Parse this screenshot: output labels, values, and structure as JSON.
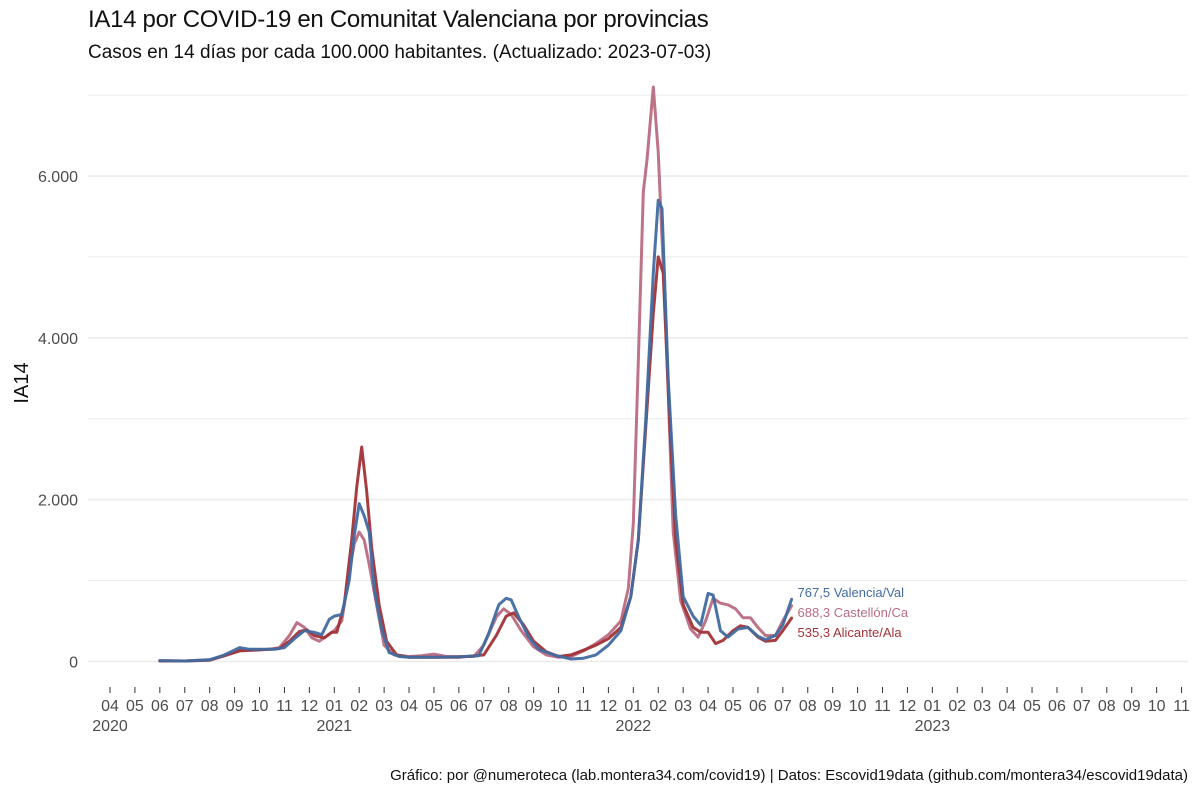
{
  "title": "IA14 por COVID-19 en Comunitat Valenciana por provincias",
  "subtitle": "Casos en 14 días por cada 100.000 habitantes.  (Actualizado: 2023-07-03)",
  "caption": "Gráfico: por @numeroteca (lab.montera34.com/covid19) | Datos: Escovid19data (github.com/montera34/escovid19data)",
  "colors": {
    "valencia": "#426ba0",
    "castellon": "#b96d82",
    "alicante": "#a23337",
    "grid": "#ebebeb",
    "axis_text": "#4d4d4d"
  },
  "chart_data": {
    "type": "line",
    "title": "IA14 por COVID-19 en Comunitat Valenciana por provincias",
    "xlabel": "",
    "ylabel": "IA14",
    "ylim": [
      -230,
      7150
    ],
    "xlim_months": [
      -1,
      42
    ],
    "x_unit": "months since 2020-04-01 (0 = 2020-04)",
    "y_ticks": [
      0,
      2000,
      4000,
      6000
    ],
    "y_tick_labels": [
      "0",
      "2.000",
      "4.000",
      "6.000"
    ],
    "grid": true,
    "x_ticks": [
      {
        "m": 0,
        "label": "04",
        "year": "2020"
      },
      {
        "m": 1,
        "label": "05"
      },
      {
        "m": 2,
        "label": "06"
      },
      {
        "m": 3,
        "label": "07"
      },
      {
        "m": 4,
        "label": "08"
      },
      {
        "m": 5,
        "label": "09"
      },
      {
        "m": 6,
        "label": "10"
      },
      {
        "m": 7,
        "label": "11"
      },
      {
        "m": 8,
        "label": "12"
      },
      {
        "m": 9,
        "label": "01",
        "year": "2021"
      },
      {
        "m": 10,
        "label": "02"
      },
      {
        "m": 11,
        "label": "03"
      },
      {
        "m": 12,
        "label": "04"
      },
      {
        "m": 13,
        "label": "05"
      },
      {
        "m": 14,
        "label": "06"
      },
      {
        "m": 15,
        "label": "07"
      },
      {
        "m": 16,
        "label": "08"
      },
      {
        "m": 17,
        "label": "09"
      },
      {
        "m": 18,
        "label": "10"
      },
      {
        "m": 19,
        "label": "11"
      },
      {
        "m": 20,
        "label": "12"
      },
      {
        "m": 21,
        "label": "01",
        "year": "2022"
      },
      {
        "m": 22,
        "label": "02"
      },
      {
        "m": 23,
        "label": "03"
      },
      {
        "m": 24,
        "label": "04"
      },
      {
        "m": 25,
        "label": "05"
      },
      {
        "m": 26,
        "label": "06"
      },
      {
        "m": 27,
        "label": "07"
      },
      {
        "m": 28,
        "label": "08"
      },
      {
        "m": 29,
        "label": "09"
      },
      {
        "m": 30,
        "label": "10"
      },
      {
        "m": 31,
        "label": "11"
      },
      {
        "m": 32,
        "label": "12"
      },
      {
        "m": 33,
        "label": "01",
        "year": "2023"
      },
      {
        "m": 34,
        "label": "02"
      },
      {
        "m": 35,
        "label": "03"
      },
      {
        "m": 36,
        "label": "04"
      },
      {
        "m": 37,
        "label": "05"
      },
      {
        "m": 38,
        "label": "06"
      },
      {
        "m": 39,
        "label": "07"
      },
      {
        "m": 40,
        "label": "08"
      },
      {
        "m": 41,
        "label": "09"
      },
      {
        "m": 42,
        "label": "10"
      },
      {
        "m": 43,
        "label": "11"
      }
    ],
    "series": [
      {
        "name": "Valencia/Val",
        "color": "#426ba0",
        "end_label": "767,5  Valencia/Val",
        "points": [
          [
            2.0,
            10
          ],
          [
            3.0,
            5
          ],
          [
            4.0,
            20
          ],
          [
            4.6,
            80
          ],
          [
            5.2,
            170
          ],
          [
            5.6,
            150
          ],
          [
            6.0,
            150
          ],
          [
            6.6,
            150
          ],
          [
            7.0,
            170
          ],
          [
            7.4,
            280
          ],
          [
            7.8,
            380
          ],
          [
            8.2,
            360
          ],
          [
            8.5,
            330
          ],
          [
            8.8,
            520
          ],
          [
            9.0,
            560
          ],
          [
            9.3,
            580
          ],
          [
            9.6,
            1000
          ],
          [
            9.8,
            1550
          ],
          [
            10.0,
            1950
          ],
          [
            10.2,
            1800
          ],
          [
            10.4,
            1600
          ],
          [
            10.6,
            900
          ],
          [
            10.9,
            400
          ],
          [
            11.2,
            110
          ],
          [
            11.6,
            60
          ],
          [
            12.0,
            50
          ],
          [
            13.0,
            50
          ],
          [
            14.0,
            55
          ],
          [
            14.8,
            70
          ],
          [
            15.2,
            350
          ],
          [
            15.6,
            700
          ],
          [
            15.9,
            780
          ],
          [
            16.1,
            760
          ],
          [
            16.4,
            550
          ],
          [
            16.8,
            300
          ],
          [
            17.2,
            150
          ],
          [
            17.8,
            80
          ],
          [
            18.5,
            30
          ],
          [
            19.0,
            40
          ],
          [
            19.5,
            80
          ],
          [
            20.0,
            200
          ],
          [
            20.5,
            380
          ],
          [
            20.9,
            800
          ],
          [
            21.2,
            1500
          ],
          [
            21.5,
            3000
          ],
          [
            21.8,
            4800
          ],
          [
            22.0,
            5700
          ],
          [
            22.15,
            5600
          ],
          [
            22.4,
            3500
          ],
          [
            22.7,
            1800
          ],
          [
            23.0,
            800
          ],
          [
            23.4,
            560
          ],
          [
            23.7,
            450
          ],
          [
            24.0,
            840
          ],
          [
            24.2,
            820
          ],
          [
            24.5,
            380
          ],
          [
            24.8,
            300
          ],
          [
            25.2,
            400
          ],
          [
            25.6,
            420
          ],
          [
            26.0,
            310
          ],
          [
            26.3,
            270
          ],
          [
            26.7,
            320
          ],
          [
            27.0,
            450
          ],
          [
            27.35,
            767.5
          ]
        ]
      },
      {
        "name": "Castellón/Ca",
        "color": "#b96d82",
        "end_label": "688,3  Castellón/Ca",
        "points": [
          [
            2.0,
            10
          ],
          [
            3.0,
            5
          ],
          [
            4.0,
            20
          ],
          [
            4.6,
            70
          ],
          [
            5.2,
            140
          ],
          [
            5.8,
            140
          ],
          [
            6.4,
            150
          ],
          [
            6.8,
            170
          ],
          [
            7.2,
            320
          ],
          [
            7.5,
            480
          ],
          [
            7.8,
            420
          ],
          [
            8.1,
            290
          ],
          [
            8.4,
            250
          ],
          [
            8.8,
            340
          ],
          [
            9.0,
            380
          ],
          [
            9.3,
            500
          ],
          [
            9.6,
            1100
          ],
          [
            9.8,
            1450
          ],
          [
            10.0,
            1600
          ],
          [
            10.2,
            1500
          ],
          [
            10.4,
            1200
          ],
          [
            10.7,
            700
          ],
          [
            11.0,
            200
          ],
          [
            11.4,
            80
          ],
          [
            12.0,
            60
          ],
          [
            12.5,
            70
          ],
          [
            13.0,
            90
          ],
          [
            13.5,
            60
          ],
          [
            14.0,
            60
          ],
          [
            14.6,
            60
          ],
          [
            15.0,
            200
          ],
          [
            15.5,
            550
          ],
          [
            15.8,
            650
          ],
          [
            16.1,
            580
          ],
          [
            16.5,
            380
          ],
          [
            17.0,
            180
          ],
          [
            17.5,
            80
          ],
          [
            18.0,
            50
          ],
          [
            18.5,
            60
          ],
          [
            19.0,
            130
          ],
          [
            19.5,
            220
          ],
          [
            20.0,
            330
          ],
          [
            20.5,
            500
          ],
          [
            20.8,
            900
          ],
          [
            21.0,
            1700
          ],
          [
            21.2,
            3700
          ],
          [
            21.4,
            5800
          ],
          [
            21.55,
            6200
          ],
          [
            21.8,
            7100
          ],
          [
            22.0,
            6300
          ],
          [
            22.3,
            4200
          ],
          [
            22.6,
            1600
          ],
          [
            22.9,
            750
          ],
          [
            23.3,
            400
          ],
          [
            23.6,
            300
          ],
          [
            23.9,
            500
          ],
          [
            24.2,
            780
          ],
          [
            24.5,
            720
          ],
          [
            24.8,
            700
          ],
          [
            25.1,
            650
          ],
          [
            25.4,
            540
          ],
          [
            25.7,
            540
          ],
          [
            26.0,
            420
          ],
          [
            26.3,
            320
          ],
          [
            26.7,
            320
          ],
          [
            27.0,
            500
          ],
          [
            27.35,
            688.3
          ]
        ]
      },
      {
        "name": "Alicante/Ala",
        "color": "#a23337",
        "end_label": "535,3  Alicante/Ala",
        "points": [
          [
            2.0,
            5
          ],
          [
            3.0,
            5
          ],
          [
            4.0,
            15
          ],
          [
            4.6,
            70
          ],
          [
            5.2,
            130
          ],
          [
            5.8,
            140
          ],
          [
            6.4,
            150
          ],
          [
            6.8,
            160
          ],
          [
            7.2,
            250
          ],
          [
            7.6,
            370
          ],
          [
            7.9,
            390
          ],
          [
            8.2,
            320
          ],
          [
            8.6,
            290
          ],
          [
            8.9,
            360
          ],
          [
            9.1,
            360
          ],
          [
            9.4,
            700
          ],
          [
            9.7,
            1500
          ],
          [
            9.9,
            2150
          ],
          [
            10.1,
            2650
          ],
          [
            10.3,
            2100
          ],
          [
            10.5,
            1400
          ],
          [
            10.8,
            700
          ],
          [
            11.1,
            250
          ],
          [
            11.5,
            80
          ],
          [
            12.0,
            50
          ],
          [
            13.0,
            50
          ],
          [
            14.0,
            50
          ],
          [
            15.0,
            80
          ],
          [
            15.5,
            320
          ],
          [
            15.9,
            560
          ],
          [
            16.2,
            600
          ],
          [
            16.6,
            450
          ],
          [
            17.0,
            250
          ],
          [
            17.5,
            120
          ],
          [
            18.0,
            60
          ],
          [
            18.5,
            80
          ],
          [
            19.0,
            140
          ],
          [
            19.5,
            200
          ],
          [
            20.0,
            280
          ],
          [
            20.5,
            420
          ],
          [
            20.9,
            800
          ],
          [
            21.2,
            1500
          ],
          [
            21.5,
            2900
          ],
          [
            21.8,
            4300
          ],
          [
            22.0,
            5000
          ],
          [
            22.2,
            4800
          ],
          [
            22.45,
            3000
          ],
          [
            22.7,
            1500
          ],
          [
            23.0,
            700
          ],
          [
            23.4,
            420
          ],
          [
            23.7,
            360
          ],
          [
            24.0,
            360
          ],
          [
            24.3,
            220
          ],
          [
            24.6,
            260
          ],
          [
            25.0,
            380
          ],
          [
            25.3,
            440
          ],
          [
            25.6,
            420
          ],
          [
            26.0,
            300
          ],
          [
            26.3,
            250
          ],
          [
            26.7,
            260
          ],
          [
            27.0,
            380
          ],
          [
            27.35,
            535.3
          ]
        ]
      }
    ]
  }
}
